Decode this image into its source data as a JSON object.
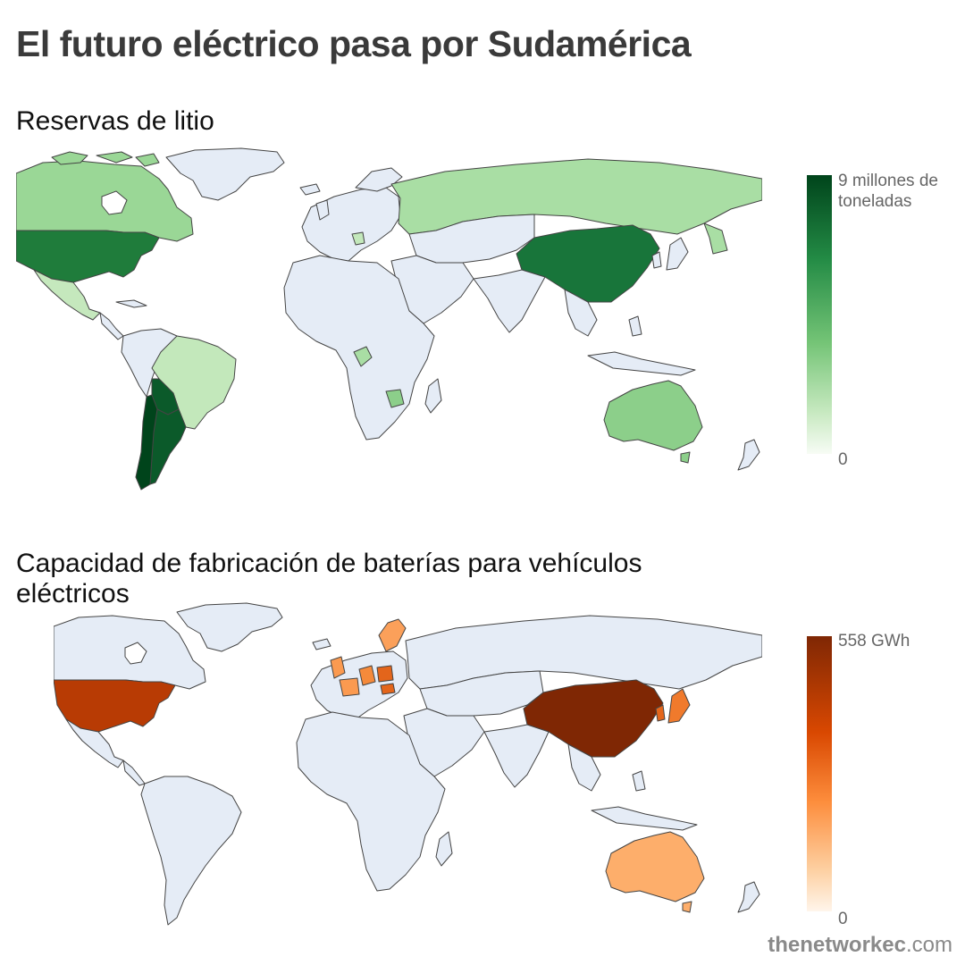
{
  "title": "El futuro eléctrico pasa por Sudamérica",
  "maps": [
    {
      "title": "Reservas de litio",
      "legend": {
        "max_label": "9 millones de toneladas",
        "min_label": "0",
        "colors": [
          "#f7fcf5",
          "#c7e9c0",
          "#74c476",
          "#238b45",
          "#00441b"
        ]
      },
      "highlighted_countries": [
        {
          "name": "Chile",
          "color": "#00441b"
        },
        {
          "name": "Argentina",
          "color": "#0b5a2a"
        },
        {
          "name": "Bolivia",
          "color": "#0b5a2a"
        },
        {
          "name": "United States",
          "color": "#1f7c3b"
        },
        {
          "name": "China",
          "color": "#18753a"
        },
        {
          "name": "Australia",
          "color": "#8ccf8a"
        },
        {
          "name": "Canada",
          "color": "#9ad796"
        },
        {
          "name": "Russia",
          "color": "#a9dea4"
        },
        {
          "name": "Brazil",
          "color": "#c3e8bb"
        },
        {
          "name": "Mexico",
          "color": "#c5e8bd"
        }
      ]
    },
    {
      "title": "Capacidad de fabricación de baterías para vehículos eléctricos",
      "legend": {
        "max_label": "558 GWh",
        "min_label": "0",
        "colors": [
          "#fff5eb",
          "#fdd0a2",
          "#fd8d3c",
          "#d94801",
          "#7f2704"
        ]
      },
      "highlighted_countries": [
        {
          "name": "China",
          "color": "#7f2704"
        },
        {
          "name": "United States",
          "color": "#b83b04"
        },
        {
          "name": "Japan",
          "color": "#f07a2c"
        },
        {
          "name": "South Korea",
          "color": "#e4661c"
        },
        {
          "name": "Poland",
          "color": "#e3651b"
        },
        {
          "name": "Germany",
          "color": "#f58a3b"
        },
        {
          "name": "Sweden",
          "color": "#fba05a"
        },
        {
          "name": "United Kingdom",
          "color": "#fb9a50"
        },
        {
          "name": "Australia",
          "color": "#fdae6b"
        }
      ]
    }
  ],
  "colors": {
    "land": "#e5ecf6",
    "border": "#444444"
  },
  "source": {
    "bold": "thenetworkec",
    "rest": ".com"
  }
}
